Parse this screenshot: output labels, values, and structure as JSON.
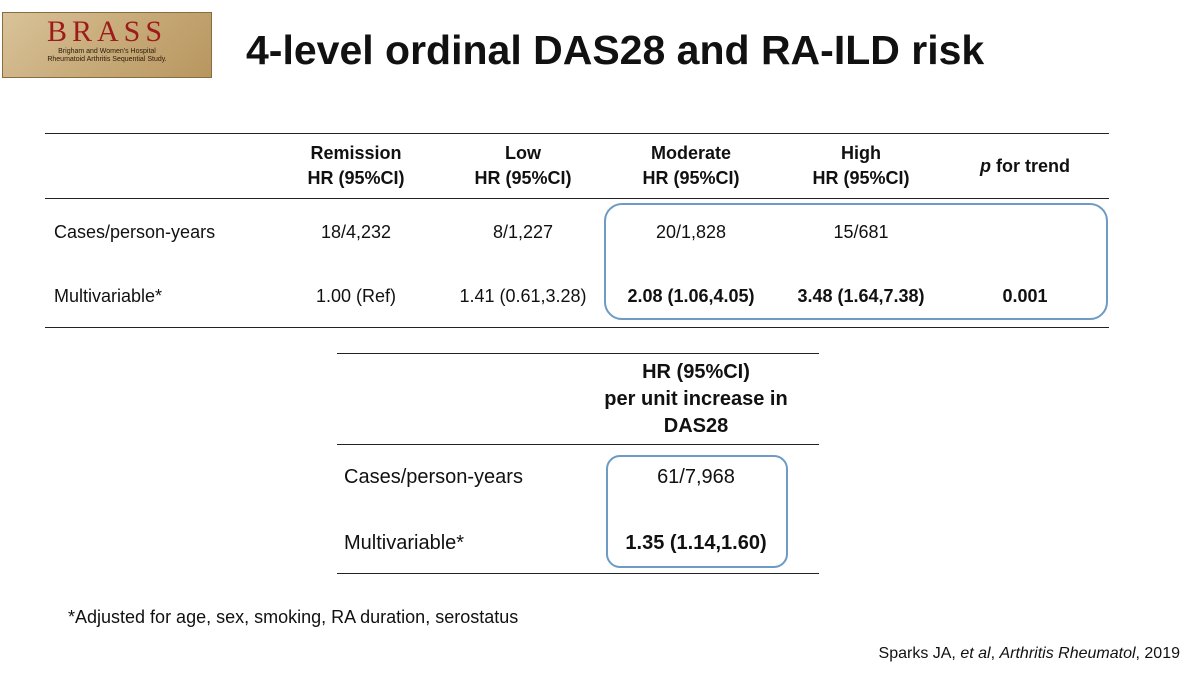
{
  "logo": {
    "word": "BRASS",
    "line1": "Brigham and Women's Hospital",
    "line2": "Rheumatoid Arthritis Sequential Study."
  },
  "title": "4-level ordinal DAS28 and RA-ILD risk",
  "table1": {
    "headers": [
      {
        "line1": "Remission",
        "line2": "HR (95%CI)"
      },
      {
        "line1": "Low",
        "line2": "HR (95%CI)"
      },
      {
        "line1": "Moderate",
        "line2": "HR (95%CI)"
      },
      {
        "line1": "High",
        "line2": "HR (95%CI)"
      }
    ],
    "p_for_trend_p": "p",
    "p_for_trend_rest": " for trend",
    "rows": [
      {
        "label": "Cases/person-years",
        "cells": [
          "18/4,232",
          "8/1,227",
          "20/1,828",
          "15/681",
          ""
        ]
      },
      {
        "label": "Multivariable*",
        "cells": [
          "1.00 (Ref)",
          "1.41 (0.61,3.28)",
          "2.08 (1.06,4.05)",
          "3.48 (1.64,7.38)",
          "0.001"
        ]
      }
    ],
    "highlight_color": "#6d9bc3"
  },
  "table2": {
    "header": {
      "line1": "HR (95%CI)",
      "line2": "per unit increase in",
      "line3": "DAS28"
    },
    "rows": [
      {
        "label": "Cases/person-years",
        "value": "61/7,968"
      },
      {
        "label": "Multivariable*",
        "value": "1.35 (1.14,1.60)"
      }
    ]
  },
  "footnote": "*Adjusted for age, sex, smoking, RA duration, serostatus",
  "citation": {
    "author": "Sparks JA, ",
    "etal": "et al",
    "sep": ", ",
    "journal": "Arthritis Rheumatol",
    "year": ", 2019"
  }
}
